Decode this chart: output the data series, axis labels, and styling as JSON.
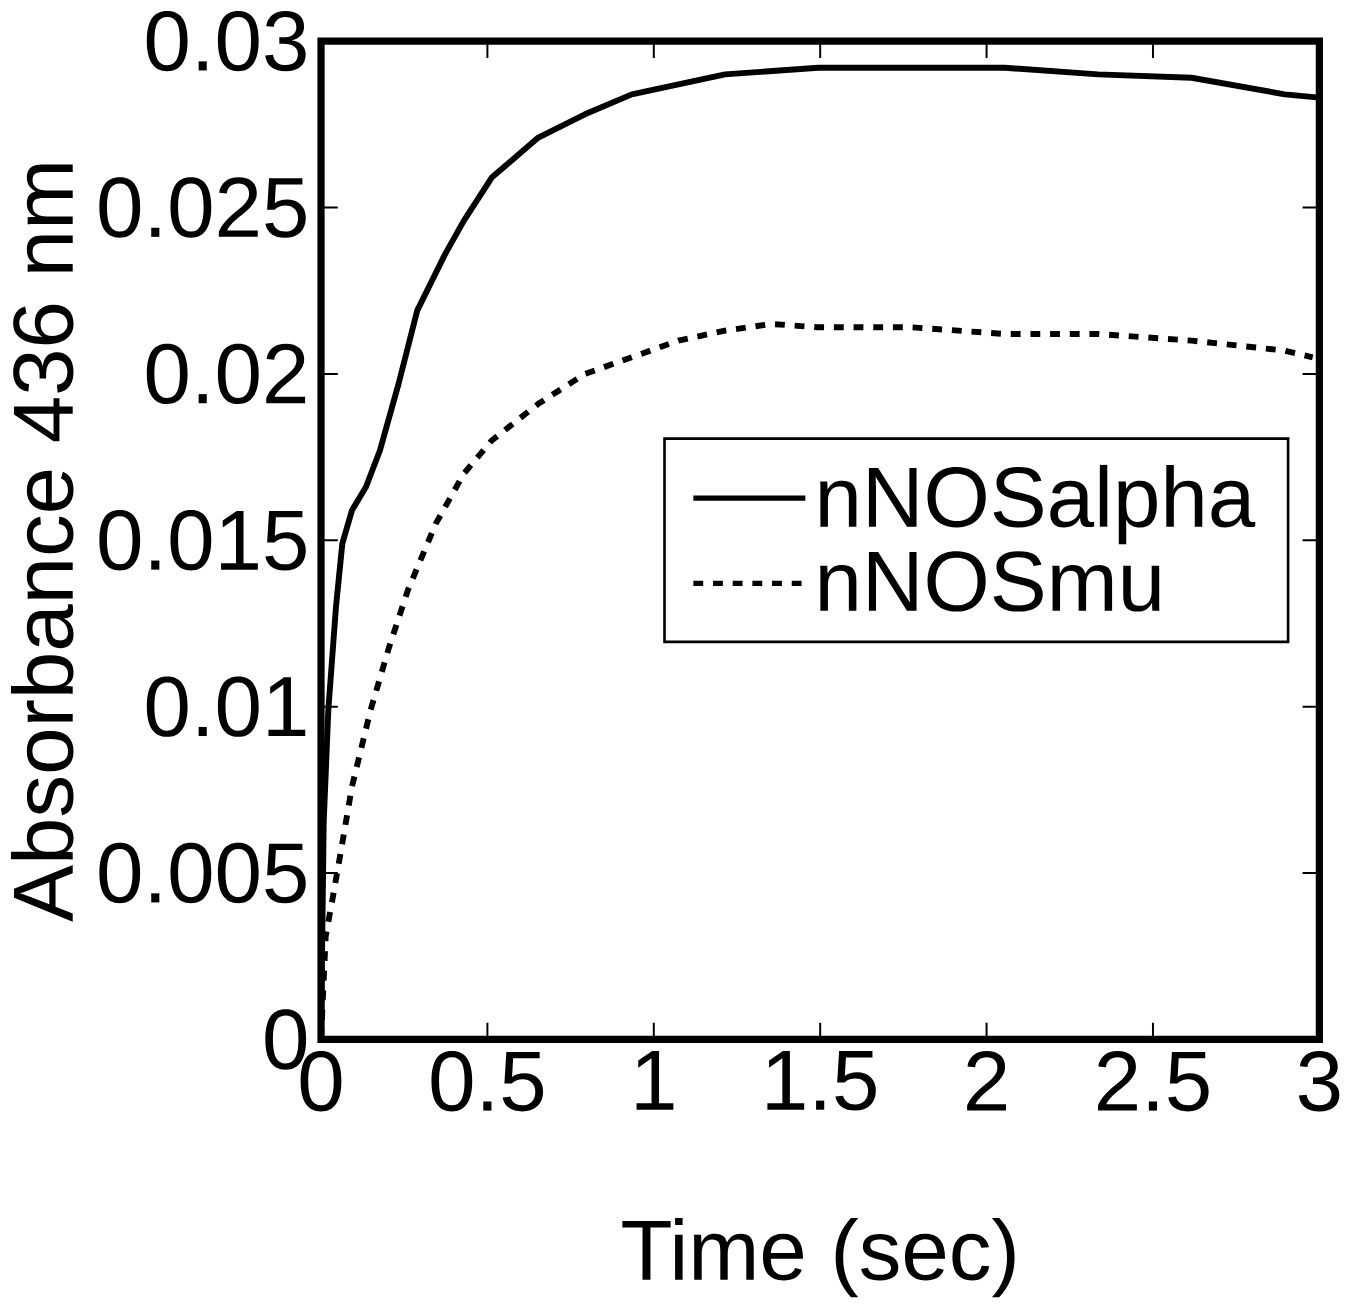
{
  "chart_data": {
    "type": "line",
    "xlabel": "Time (sec)",
    "ylabel": "Absorbance 436 nm",
    "xlim": [
      0,
      3
    ],
    "ylim": [
      0,
      0.03
    ],
    "xticks": [
      0,
      0.5,
      1,
      1.5,
      2,
      2.5,
      3
    ],
    "yticks": [
      0,
      0.005,
      0.01,
      0.015,
      0.02,
      0.025,
      0.03
    ],
    "legend": "right",
    "grid": false,
    "marker": "none",
    "series": [
      {
        "name": "nNOSalpha",
        "color": "#000000",
        "line_style": "solid",
        "x": [
          0,
          0.008,
          0.022,
          0.045,
          0.064,
          0.093,
          0.135,
          0.177,
          0.233,
          0.289,
          0.373,
          0.429,
          0.513,
          0.653,
          0.793,
          0.934,
          1.074,
          1.214,
          1.494,
          1.775,
          2.055,
          2.335,
          2.616,
          2.896,
          3
        ],
        "values": [
          0,
          0.0065,
          0.0099,
          0.013,
          0.0149,
          0.0159,
          0.0166,
          0.0177,
          0.0197,
          0.0219,
          0.0236,
          0.0246,
          0.0259,
          0.0271,
          0.0278,
          0.0284,
          0.0287,
          0.029,
          0.0292,
          0.0292,
          0.0292,
          0.029,
          0.0289,
          0.0284,
          0.0283
        ]
      },
      {
        "name": "nNOSmu",
        "color": "#000000",
        "line_style": "dashed",
        "x": [
          0,
          0.014,
          0.036,
          0.064,
          0.093,
          0.149,
          0.205,
          0.261,
          0.345,
          0.429,
          0.513,
          0.653,
          0.793,
          0.934,
          1.074,
          1.214,
          1.354,
          1.494,
          1.775,
          2.055,
          2.335,
          2.616,
          2.896,
          2.98
        ],
        "values": [
          0,
          0.0031,
          0.0043,
          0.0059,
          0.0076,
          0.0099,
          0.0118,
          0.0135,
          0.0155,
          0.017,
          0.018,
          0.0191,
          0.02,
          0.0205,
          0.021,
          0.0213,
          0.0215,
          0.0214,
          0.0214,
          0.0212,
          0.0212,
          0.021,
          0.0207,
          0.0205
        ]
      }
    ]
  }
}
